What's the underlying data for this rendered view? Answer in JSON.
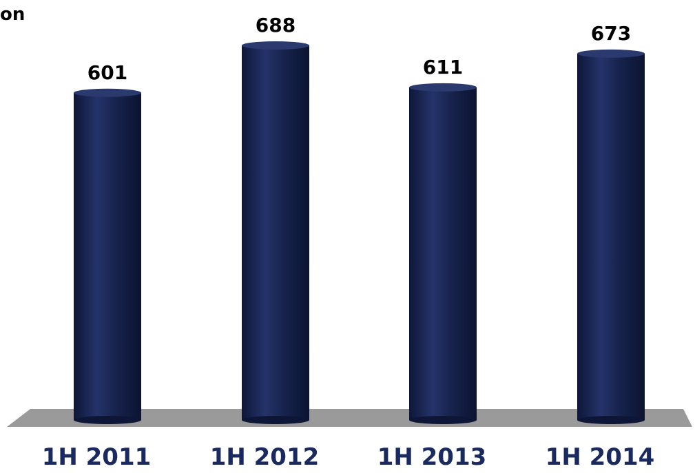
{
  "corner_text": "on",
  "colors": {
    "bar": "#14204a",
    "bar_highlight": "#2a3a6e",
    "floor": "#9a9a9a",
    "value_label": "#000000",
    "category_label": "#1a2a5e"
  },
  "chart_data": {
    "type": "bar",
    "title": "",
    "xlabel": "",
    "ylabel": "",
    "categories": [
      "1H 2011",
      "1H 2012",
      "1H 2013",
      "1H 2014"
    ],
    "values": [
      601,
      688,
      611,
      673
    ],
    "value_labels": [
      "601",
      "688",
      "611",
      "673"
    ],
    "ylim": [
      0,
      688
    ],
    "grid": false,
    "legend": "none"
  }
}
